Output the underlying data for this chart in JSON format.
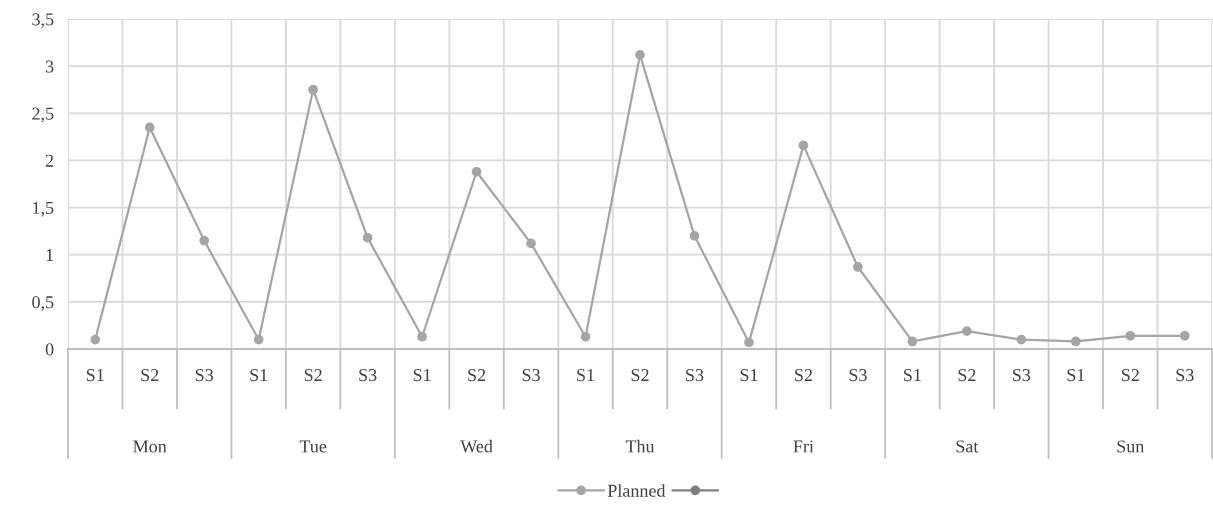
{
  "chart_data": {
    "type": "line",
    "categories": [
      "S1",
      "S2",
      "S3",
      "S1",
      "S2",
      "S3",
      "S1",
      "S2",
      "S3",
      "S1",
      "S2",
      "S3",
      "S1",
      "S2",
      "S3",
      "S1",
      "S2",
      "S3",
      "S1",
      "S2",
      "S3"
    ],
    "series": [
      {
        "name": "Planned",
        "color": "#a5a5a5",
        "values": [
          0.1,
          2.35,
          1.15,
          0.1,
          2.75,
          1.18,
          0.13,
          1.88,
          1.12,
          0.13,
          3.12,
          1.2,
          0.07,
          2.16,
          0.87,
          0.08,
          0.19,
          0.1,
          0.08,
          0.14,
          0.14
        ]
      },
      {
        "color": "#7f7f7f",
        "values": [
          null,
          null,
          null,
          null,
          null,
          null,
          null,
          null,
          null,
          null,
          null,
          null,
          null,
          null,
          null,
          null,
          null,
          null,
          null,
          null,
          null
        ]
      }
    ],
    "annotations": [
      "Mon",
      "Tue",
      "Wed",
      "Thu",
      "Fri",
      "Sat",
      "Sun"
    ],
    "ylim": [
      0,
      3.5
    ],
    "yticks": [
      0,
      {
        "value": 0.5,
        "label": "0,5"
      },
      1,
      {
        "value": 1.5,
        "label": "1,5"
      },
      2,
      {
        "value": 2.5,
        "label": "2,5"
      },
      3,
      {
        "value": 3.5,
        "label": "3,5"
      }
    ],
    "grid": true,
    "legend": "bottom",
    "marker": "circle",
    "line_style": "solid"
  }
}
